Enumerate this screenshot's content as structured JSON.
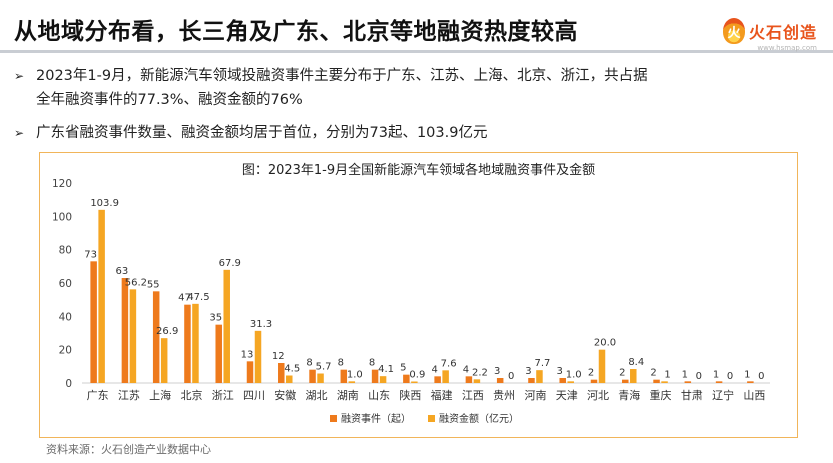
{
  "header": {
    "title": "从地域分布看，长三角及广东、北京等地融资热度较高",
    "logo_text": "火石创造",
    "logo_glyph": "火",
    "logo_url": "www.hsmap.com"
  },
  "bullets": [
    {
      "arrow": "➢",
      "line1": "2023年1-9月，新能源汽车领域投融资事件主要分布于广东、江苏、上海、北京、浙江，共占据",
      "line2": "全年融资事件的77.3%、融资金额的76%"
    },
    {
      "arrow": "➢",
      "line1": "广东省融资事件数量、融资金额均居于首位，分别为73起、103.9亿元",
      "line2": ""
    }
  ],
  "source": "资料来源：火石创造产业数据中心",
  "chart_data": {
    "type": "bar",
    "title": "图：2023年1-9月全国新能源汽车领域各地域融资事件及金额",
    "categories": [
      "广东",
      "江苏",
      "上海",
      "北京",
      "浙江",
      "四川",
      "安徽",
      "湖北",
      "湖南",
      "山东",
      "陕西",
      "福建",
      "江西",
      "贵州",
      "河南",
      "天津",
      "河北",
      "青海",
      "重庆",
      "甘肃",
      "辽宁",
      "山西"
    ],
    "series": [
      {
        "name": "融资事件（起）",
        "color": "#ee7a1c",
        "values": [
          73,
          63,
          55,
          47,
          35,
          13,
          12,
          8,
          8,
          8,
          5,
          4,
          4,
          3,
          3,
          3,
          2,
          2,
          2,
          1,
          1,
          1
        ],
        "labels": [
          "73",
          "63",
          "55",
          "47",
          "35",
          "13",
          "12",
          "8",
          "8",
          "8",
          "5",
          "4",
          "4",
          "3",
          "3",
          "3",
          "2",
          "2",
          "2",
          "1",
          "1",
          "1"
        ]
      },
      {
        "name": "融资金额（亿元）",
        "color": "#f5a623",
        "values": [
          103.9,
          56.2,
          26.9,
          47.5,
          67.9,
          31.3,
          4.5,
          5.7,
          1.0,
          4.1,
          0.9,
          7.6,
          2.2,
          0,
          7.7,
          1.0,
          20.0,
          8.4,
          1,
          0,
          0,
          0
        ],
        "labels": [
          "103.9",
          "56.2",
          "26.9",
          "47.5",
          "67.9",
          "31.3",
          "4.5",
          "5.7",
          "1.0",
          "4.1",
          "0.9",
          "7.6",
          "2.2",
          "0",
          "7.7",
          "1.0",
          "20.0",
          "8.4",
          "1",
          "0",
          "0",
          "0"
        ]
      }
    ],
    "yticks": [
      0,
      20,
      40,
      60,
      80,
      100,
      120
    ],
    "ylim": [
      0,
      120
    ],
    "grid": false,
    "legend": "bottom-center"
  }
}
